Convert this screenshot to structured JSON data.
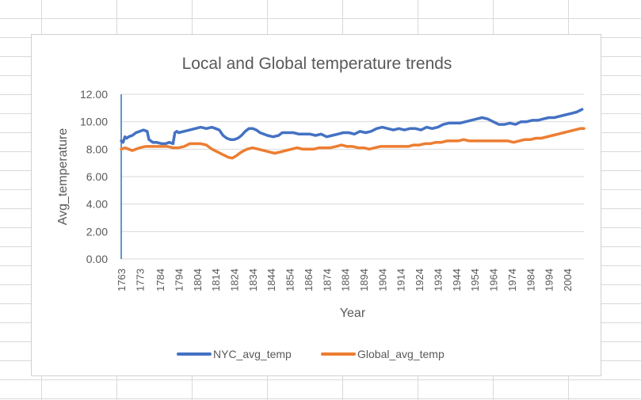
{
  "chart_data": {
    "type": "line",
    "title": "Local and Global temperature trends",
    "xlabel": "Year",
    "ylabel": "Avg_temperature",
    "ylim": [
      0,
      12
    ],
    "ytick_labels": [
      "0.00",
      "2.00",
      "4.00",
      "6.00",
      "8.00",
      "10.00",
      "12.00"
    ],
    "xlim": [
      1763,
      2013
    ],
    "xtick_labels": [
      "1763",
      "1773",
      "1784",
      "1794",
      "1804",
      "1814",
      "1824",
      "1834",
      "1844",
      "1854",
      "1864",
      "1874",
      "1884",
      "1894",
      "1904",
      "1914",
      "1924",
      "1934",
      "1944",
      "1954",
      "1964",
      "1974",
      "1984",
      "1994",
      "2004"
    ],
    "grid": true,
    "legend_position": "bottom",
    "series": [
      {
        "name": "NYC_avg_temp",
        "color": "#4472c4",
        "x": [
          1763,
          1764,
          1765,
          1766,
          1767,
          1769,
          1771,
          1773,
          1775,
          1777,
          1778,
          1779,
          1780,
          1782,
          1785,
          1787,
          1789,
          1791,
          1792,
          1793,
          1794,
          1797,
          1800,
          1803,
          1806,
          1809,
          1812,
          1814,
          1816,
          1818,
          1820,
          1822,
          1824,
          1826,
          1828,
          1830,
          1832,
          1834,
          1836,
          1838,
          1840,
          1842,
          1845,
          1848,
          1850,
          1853,
          1856,
          1859,
          1862,
          1865,
          1868,
          1871,
          1874,
          1877,
          1880,
          1883,
          1886,
          1889,
          1892,
          1895,
          1898,
          1901,
          1904,
          1907,
          1910,
          1913,
          1916,
          1919,
          1922,
          1925,
          1928,
          1931,
          1934,
          1937,
          1940,
          1943,
          1946,
          1949,
          1952,
          1955,
          1958,
          1961,
          1964,
          1967,
          1970,
          1973,
          1976,
          1979,
          1982,
          1985,
          1988,
          1991,
          1994,
          1997,
          2000,
          2003,
          2006,
          2009,
          2012
        ],
        "values": [
          8.6,
          8.5,
          8.9,
          8.8,
          8.9,
          9.0,
          9.2,
          9.3,
          9.4,
          9.3,
          8.7,
          8.6,
          8.5,
          8.5,
          8.4,
          8.4,
          8.5,
          8.4,
          9.2,
          9.3,
          9.2,
          9.3,
          9.4,
          9.5,
          9.6,
          9.5,
          9.6,
          9.5,
          9.4,
          9.0,
          8.8,
          8.7,
          8.7,
          8.8,
          9.0,
          9.3,
          9.5,
          9.5,
          9.4,
          9.2,
          9.1,
          9.0,
          8.9,
          9.0,
          9.2,
          9.2,
          9.2,
          9.1,
          9.1,
          9.1,
          9.0,
          9.1,
          8.9,
          9.0,
          9.1,
          9.2,
          9.2,
          9.1,
          9.3,
          9.2,
          9.3,
          9.5,
          9.6,
          9.5,
          9.4,
          9.5,
          9.4,
          9.5,
          9.5,
          9.4,
          9.6,
          9.5,
          9.6,
          9.8,
          9.9,
          9.9,
          9.9,
          10.0,
          10.1,
          10.2,
          10.3,
          10.2,
          10.0,
          9.8,
          9.8,
          9.9,
          9.8,
          10.0,
          10.0,
          10.1,
          10.1,
          10.2,
          10.3,
          10.3,
          10.4,
          10.5,
          10.6,
          10.7,
          10.9
        ]
      },
      {
        "name": "Global_avg_temp",
        "color": "#ed7d31",
        "x": [
          1763,
          1765,
          1767,
          1769,
          1771,
          1773,
          1776,
          1779,
          1782,
          1785,
          1788,
          1791,
          1794,
          1797,
          1800,
          1803,
          1806,
          1809,
          1812,
          1815,
          1818,
          1821,
          1823,
          1825,
          1828,
          1831,
          1834,
          1837,
          1840,
          1843,
          1846,
          1849,
          1852,
          1855,
          1858,
          1861,
          1864,
          1867,
          1870,
          1873,
          1876,
          1879,
          1882,
          1885,
          1888,
          1891,
          1894,
          1897,
          1900,
          1903,
          1906,
          1909,
          1912,
          1915,
          1918,
          1921,
          1924,
          1927,
          1930,
          1933,
          1936,
          1939,
          1942,
          1945,
          1948,
          1951,
          1954,
          1957,
          1960,
          1963,
          1966,
          1969,
          1972,
          1975,
          1978,
          1981,
          1984,
          1987,
          1990,
          1993,
          1996,
          1999,
          2002,
          2005,
          2008,
          2011,
          2013
        ],
        "values": [
          8.0,
          8.1,
          8.0,
          7.9,
          8.0,
          8.1,
          8.2,
          8.2,
          8.2,
          8.2,
          8.2,
          8.1,
          8.1,
          8.2,
          8.4,
          8.4,
          8.4,
          8.3,
          8.0,
          7.8,
          7.6,
          7.4,
          7.35,
          7.5,
          7.8,
          8.0,
          8.1,
          8.0,
          7.9,
          7.8,
          7.7,
          7.8,
          7.9,
          8.0,
          8.1,
          8.0,
          8.0,
          8.0,
          8.1,
          8.1,
          8.1,
          8.2,
          8.3,
          8.2,
          8.2,
          8.1,
          8.1,
          8.0,
          8.1,
          8.2,
          8.2,
          8.2,
          8.2,
          8.2,
          8.2,
          8.3,
          8.3,
          8.4,
          8.4,
          8.5,
          8.5,
          8.6,
          8.6,
          8.6,
          8.7,
          8.6,
          8.6,
          8.6,
          8.6,
          8.6,
          8.6,
          8.6,
          8.6,
          8.5,
          8.6,
          8.7,
          8.7,
          8.8,
          8.8,
          8.9,
          9.0,
          9.1,
          9.2,
          9.3,
          9.4,
          9.5,
          9.5
        ]
      }
    ]
  }
}
